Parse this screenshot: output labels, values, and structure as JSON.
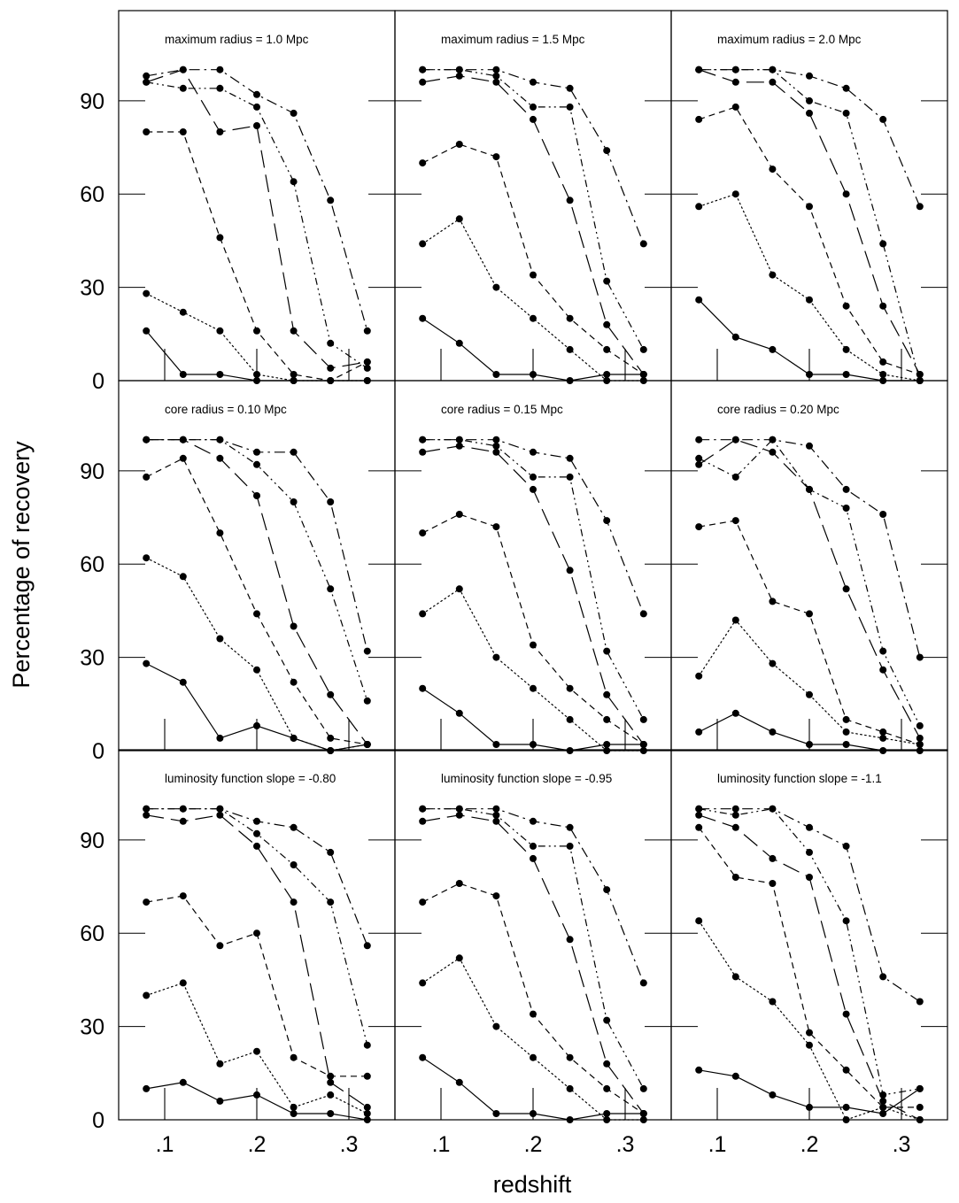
{
  "figure": {
    "ylabel": "Percentage of recovery",
    "xlabel": "redshift",
    "y_ticks": [
      "0",
      "30",
      "60",
      "90"
    ],
    "x_ticks": [
      ".1",
      ".2",
      ".3"
    ]
  },
  "chart_data": {
    "type": "line",
    "xlabel": "redshift",
    "ylabel": "Percentage of recovery",
    "xlim": [
      0.05,
      0.35
    ],
    "ylim": [
      0,
      119
    ],
    "x": [
      0.08,
      0.12,
      0.16,
      0.2,
      0.24,
      0.28,
      0.32
    ],
    "line_styles": [
      "solid",
      "dotted",
      "short-dash",
      "long-dash",
      "dash-dot-dot",
      "dash-dot"
    ],
    "grid": false,
    "panels": [
      {
        "title": "maximum radius = 1.0 Mpc",
        "series": [
          {
            "style": "solid",
            "values": [
              16,
              2,
              2,
              0,
              0,
              0,
              0
            ]
          },
          {
            "style": "dotted",
            "values": [
              28,
              22,
              16,
              2,
              0,
              0,
              0
            ]
          },
          {
            "style": "short-dash",
            "values": [
              80,
              80,
              46,
              16,
              2,
              0,
              6
            ]
          },
          {
            "style": "long-dash",
            "values": [
              96,
              100,
              80,
              82,
              16,
              4,
              6
            ]
          },
          {
            "style": "dash-dot-dot",
            "values": [
              96,
              94,
              94,
              88,
              64,
              12,
              4
            ]
          },
          {
            "style": "dash-dot",
            "values": [
              98,
              100,
              100,
              92,
              86,
              58,
              16
            ]
          }
        ]
      },
      {
        "title": "maximum radius = 1.5 Mpc",
        "series": [
          {
            "style": "solid",
            "values": [
              20,
              12,
              2,
              2,
              0,
              2,
              2
            ]
          },
          {
            "style": "dotted",
            "values": [
              44,
              52,
              30,
              20,
              10,
              0,
              0
            ]
          },
          {
            "style": "short-dash",
            "values": [
              70,
              76,
              72,
              34,
              20,
              10,
              2
            ]
          },
          {
            "style": "long-dash",
            "values": [
              96,
              98,
              96,
              84,
              58,
              18,
              2
            ]
          },
          {
            "style": "dash-dot-dot",
            "values": [
              100,
              100,
              98,
              88,
              88,
              32,
              10
            ]
          },
          {
            "style": "dash-dot",
            "values": [
              100,
              100,
              100,
              96,
              94,
              74,
              44
            ]
          }
        ]
      },
      {
        "title": "maximum radius = 2.0 Mpc",
        "series": [
          {
            "style": "solid",
            "values": [
              26,
              14,
              10,
              2,
              2,
              0,
              0
            ]
          },
          {
            "style": "dotted",
            "values": [
              56,
              60,
              34,
              26,
              10,
              2,
              0
            ]
          },
          {
            "style": "short-dash",
            "values": [
              84,
              88,
              68,
              56,
              24,
              6,
              2
            ]
          },
          {
            "style": "long-dash",
            "values": [
              100,
              96,
              96,
              86,
              60,
              24,
              2
            ]
          },
          {
            "style": "dash-dot-dot",
            "values": [
              100,
              100,
              100,
              90,
              86,
              44,
              0
            ]
          },
          {
            "style": "dash-dot",
            "values": [
              100,
              100,
              100,
              98,
              94,
              84,
              56
            ]
          }
        ]
      },
      {
        "title": "core radius = 0.10 Mpc",
        "series": [
          {
            "style": "solid",
            "values": [
              28,
              22,
              4,
              8,
              4,
              0,
              2
            ]
          },
          {
            "style": "dotted",
            "values": [
              62,
              56,
              36,
              26,
              4,
              0,
              2
            ]
          },
          {
            "style": "short-dash",
            "values": [
              88,
              94,
              70,
              44,
              22,
              4,
              2
            ]
          },
          {
            "style": "long-dash",
            "values": [
              100,
              100,
              94,
              82,
              40,
              18,
              2
            ]
          },
          {
            "style": "dash-dot-dot",
            "values": [
              100,
              100,
              100,
              92,
              80,
              52,
              16
            ]
          },
          {
            "style": "dash-dot",
            "values": [
              100,
              100,
              100,
              96,
              96,
              80,
              32
            ]
          }
        ]
      },
      {
        "title": "core radius = 0.15 Mpc",
        "series": [
          {
            "style": "solid",
            "values": [
              20,
              12,
              2,
              2,
              0,
              2,
              2
            ]
          },
          {
            "style": "dotted",
            "values": [
              44,
              52,
              30,
              20,
              10,
              0,
              0
            ]
          },
          {
            "style": "short-dash",
            "values": [
              70,
              76,
              72,
              34,
              20,
              10,
              2
            ]
          },
          {
            "style": "long-dash",
            "values": [
              96,
              98,
              96,
              84,
              58,
              18,
              2
            ]
          },
          {
            "style": "dash-dot-dot",
            "values": [
              100,
              100,
              98,
              88,
              88,
              32,
              10
            ]
          },
          {
            "style": "dash-dot",
            "values": [
              100,
              100,
              100,
              96,
              94,
              74,
              44
            ]
          }
        ]
      },
      {
        "title": "core radius = 0.20 Mpc",
        "series": [
          {
            "style": "solid",
            "values": [
              6,
              12,
              6,
              2,
              2,
              0,
              0
            ]
          },
          {
            "style": "dotted",
            "values": [
              24,
              42,
              28,
              18,
              6,
              4,
              2
            ]
          },
          {
            "style": "short-dash",
            "values": [
              72,
              74,
              48,
              44,
              10,
              6,
              2
            ]
          },
          {
            "style": "long-dash",
            "values": [
              92,
              100,
              96,
              84,
              52,
              26,
              4
            ]
          },
          {
            "style": "dash-dot-dot",
            "values": [
              94,
              88,
              100,
              84,
              78,
              32,
              8
            ]
          },
          {
            "style": "dash-dot",
            "values": [
              100,
              100,
              100,
              98,
              84,
              76,
              30
            ]
          }
        ]
      },
      {
        "title": "luminosity function slope = -0.80",
        "series": [
          {
            "style": "solid",
            "values": [
              10,
              12,
              6,
              8,
              2,
              2,
              0
            ]
          },
          {
            "style": "dotted",
            "values": [
              40,
              44,
              18,
              22,
              4,
              8,
              2
            ]
          },
          {
            "style": "short-dash",
            "values": [
              70,
              72,
              56,
              60,
              20,
              14,
              14
            ]
          },
          {
            "style": "long-dash",
            "values": [
              98,
              96,
              98,
              88,
              70,
              12,
              4
            ]
          },
          {
            "style": "dash-dot-dot",
            "values": [
              100,
              100,
              100,
              92,
              82,
              70,
              24
            ]
          },
          {
            "style": "dash-dot",
            "values": [
              100,
              100,
              100,
              96,
              94,
              86,
              56
            ]
          }
        ]
      },
      {
        "title": "luminosity function slope = -0.95",
        "series": [
          {
            "style": "solid",
            "values": [
              20,
              12,
              2,
              2,
              0,
              2,
              2
            ]
          },
          {
            "style": "dotted",
            "values": [
              44,
              52,
              30,
              20,
              10,
              0,
              0
            ]
          },
          {
            "style": "short-dash",
            "values": [
              70,
              76,
              72,
              34,
              20,
              10,
              2
            ]
          },
          {
            "style": "long-dash",
            "values": [
              96,
              98,
              96,
              84,
              58,
              18,
              2
            ]
          },
          {
            "style": "dash-dot-dot",
            "values": [
              100,
              100,
              98,
              88,
              88,
              32,
              10
            ]
          },
          {
            "style": "dash-dot",
            "values": [
              100,
              100,
              100,
              96,
              94,
              74,
              44
            ]
          }
        ]
      },
      {
        "title": "luminosity function slope = -1.1",
        "series": [
          {
            "style": "solid",
            "values": [
              16,
              14,
              8,
              4,
              4,
              2,
              10
            ]
          },
          {
            "style": "dotted",
            "values": [
              64,
              46,
              38,
              24,
              0,
              4,
              0
            ]
          },
          {
            "style": "short-dash",
            "values": [
              94,
              78,
              76,
              28,
              16,
              4,
              4
            ]
          },
          {
            "style": "long-dash",
            "values": [
              98,
              94,
              84,
              78,
              34,
              6,
              0
            ]
          },
          {
            "style": "dash-dot-dot",
            "values": [
              100,
              98,
              100,
              86,
              64,
              8,
              10
            ]
          },
          {
            "style": "dash-dot",
            "values": [
              100,
              100,
              100,
              94,
              88,
              46,
              38
            ]
          }
        ]
      }
    ]
  }
}
